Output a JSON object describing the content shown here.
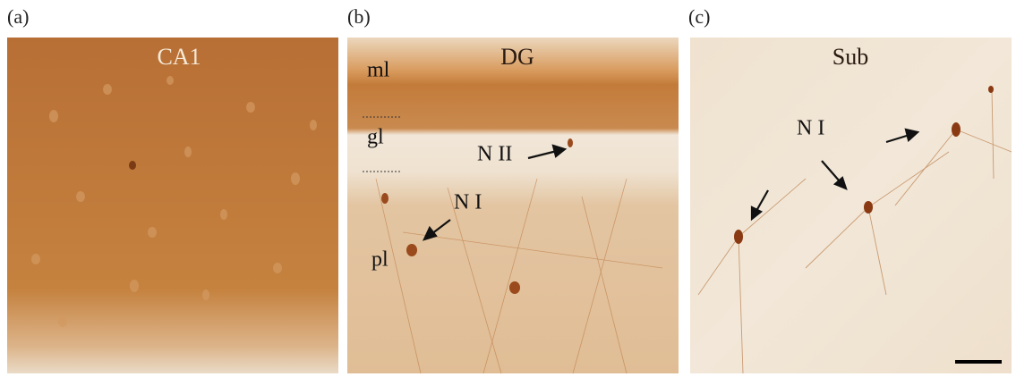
{
  "panels": [
    {
      "label": "(a)",
      "title": "CA1"
    },
    {
      "label": "(b)",
      "title": "DG",
      "annotations": [
        "ml",
        "gl",
        "pl",
        "N II",
        "N I"
      ]
    },
    {
      "label": "(c)",
      "title": "Sub",
      "annotations": [
        "N I"
      ]
    }
  ]
}
